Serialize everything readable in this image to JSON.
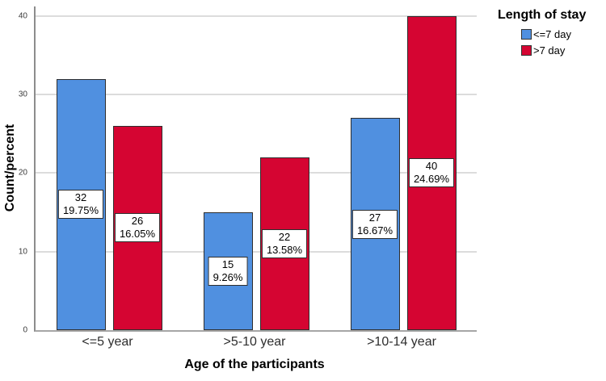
{
  "chart_data": {
    "type": "bar",
    "title": "",
    "xlabel": "Age of the participants",
    "ylabel": "Count/percent",
    "categories": [
      "<=5 year",
      ">5-10 year",
      ">10-14 year"
    ],
    "series": [
      {
        "name": "<=7 day",
        "color": "#5090E0",
        "values": [
          32,
          15,
          27
        ],
        "percent_labels": [
          "19.75%",
          "9.26%",
          "16.67%"
        ]
      },
      {
        "name": ">7 day",
        "color": "#D50532",
        "values": [
          26,
          22,
          40
        ],
        "percent_labels": [
          "16.05%",
          "13.58%",
          "24.69%"
        ]
      }
    ],
    "yticks": [
      0,
      10,
      20,
      30,
      40
    ],
    "ylim": [
      0,
      41.2
    ],
    "grid": "horizontal",
    "legend_title": "Length of stay",
    "legend_position": "top-right",
    "bar_value_boxes": true
  },
  "colors": {
    "background": "#ffffff",
    "gridline": "#dcdcdc",
    "bar_border": "#2e2e2e",
    "axis_line": "#8c8c8c"
  }
}
